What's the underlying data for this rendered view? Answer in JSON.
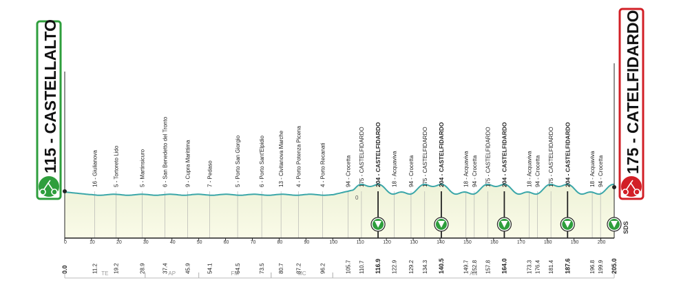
{
  "start": {
    "label": "115 - CASTELLALTO",
    "color": "#2e9e3c"
  },
  "finish": {
    "label": "175 - CATELFIDARDO",
    "color": "#d21f26"
  },
  "scale": {
    "min": 0,
    "max": 205,
    "ticks": [
      0,
      10,
      20,
      30,
      40,
      50,
      60,
      70,
      80,
      90,
      100,
      110,
      120,
      130,
      140,
      150,
      160,
      170,
      180,
      190,
      200
    ]
  },
  "waypoints": [
    {
      "km": 11.2,
      "label": "16 - Giulianova",
      "km_label": "11.2",
      "bold": false
    },
    {
      "km": 19.2,
      "label": "5 - Tortoreto Lido",
      "km_label": "19.2",
      "bold": false
    },
    {
      "km": 28.9,
      "label": "5 - Martinsicuro",
      "km_label": "28.9",
      "bold": false
    },
    {
      "km": 37.4,
      "label": "6 - San Benedetto del Tronto",
      "km_label": "37.4",
      "bold": false
    },
    {
      "km": 45.9,
      "label": "9 - Cupra Marittima",
      "km_label": "45.9",
      "bold": false
    },
    {
      "km": 54.1,
      "label": "7 - Pedaso",
      "km_label": "54.1",
      "bold": false
    },
    {
      "km": 64.5,
      "label": "5 - Porto San Giorgio",
      "km_label": "64.5",
      "bold": false
    },
    {
      "km": 73.5,
      "label": "6 - Porto Sant'Elpidio",
      "km_label": "73.5",
      "bold": false
    },
    {
      "km": 80.7,
      "label": "13 - Civitanova Marche",
      "km_label": "80.7",
      "bold": false
    },
    {
      "km": 87.2,
      "label": "4 - Porto Potenza Picena",
      "km_label": "87.2",
      "bold": false
    },
    {
      "km": 96.2,
      "label": "4 - Porto Recanati",
      "km_label": "96.2",
      "bold": false
    },
    {
      "km": 105.7,
      "label": "94 - Crocetta",
      "km_label": "105.7",
      "bold": false
    },
    {
      "km": 110.7,
      "label": "175 - CASTELFIDARDO",
      "km_label": "110.7",
      "bold": false
    },
    {
      "km": 116.9,
      "label": "204 - CASTELFIDARDO",
      "km_label": "116.9",
      "bold": true
    },
    {
      "km": 122.9,
      "label": "18 - Acquaviva",
      "km_label": "122.9",
      "bold": false
    },
    {
      "km": 129.2,
      "label": "94 - Crocetta",
      "km_label": "129.2",
      "bold": false
    },
    {
      "km": 134.3,
      "label": "175 - CASTELFIDARDO",
      "km_label": "134.3",
      "bold": false
    },
    {
      "km": 140.5,
      "label": "204 - CASTELFIDARDO",
      "km_label": "140.5",
      "bold": true
    },
    {
      "km": 149.7,
      "label": "18 - Acquaviva",
      "km_label": "149.7",
      "bold": false
    },
    {
      "km": 152.8,
      "label": "94 - Crocetta",
      "km_label": "152.8",
      "bold": false
    },
    {
      "km": 157.8,
      "label": "175 - CASTELFIDARDO",
      "km_label": "157.8",
      "bold": false
    },
    {
      "km": 164.0,
      "label": "204 - CASTELFIDARDO",
      "km_label": "164.0",
      "bold": true
    },
    {
      "km": 173.3,
      "label": "18 - Acquaviva",
      "km_label": "173.3",
      "bold": false
    },
    {
      "km": 176.4,
      "label": "94 - Crocetta",
      "km_label": "176.4",
      "bold": false
    },
    {
      "km": 181.4,
      "label": "175 - CASTELFIDARDO",
      "km_label": "181.4",
      "bold": false
    },
    {
      "km": 187.6,
      "label": "204 - CASTELFIDARDO",
      "km_label": "187.6",
      "bold": true
    },
    {
      "km": 196.8,
      "label": "18 - Acquaviva",
      "km_label": "196.8",
      "bold": false
    },
    {
      "km": 199.9,
      "label": "94 - Crocetta",
      "km_label": "199.9",
      "bold": false
    }
  ],
  "start_km_label": "0.0",
  "finish_km_label": "205.0",
  "lap_markers_km": [
    116.9,
    140.5,
    164.0,
    187.6,
    205.0
  ],
  "sprint_label": "0",
  "sds_label": "SDS",
  "provinces": [
    {
      "label": "TE",
      "from_km": 0,
      "to_km": 30
    },
    {
      "label": "AP",
      "from_km": 30,
      "to_km": 50
    },
    {
      "label": "FM",
      "from_km": 50,
      "to_km": 77
    },
    {
      "label": "MC",
      "from_km": 77,
      "to_km": 100
    },
    {
      "label": "AN",
      "from_km": 100,
      "to_km": 205
    }
  ],
  "colors": {
    "profile_line": "#3aa6a8",
    "profile_fill": "#f5f6dc",
    "lap_green": "#2e9e3c"
  }
}
